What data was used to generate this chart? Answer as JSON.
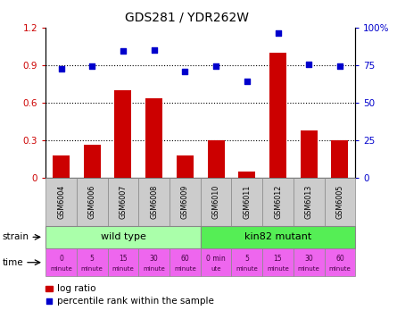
{
  "title": "GDS281 / YDR262W",
  "samples": [
    "GSM6004",
    "GSM6006",
    "GSM6007",
    "GSM6008",
    "GSM6009",
    "GSM6010",
    "GSM6011",
    "GSM6012",
    "GSM6013",
    "GSM6005"
  ],
  "log_ratio": [
    0.18,
    0.27,
    0.7,
    0.64,
    0.18,
    0.3,
    0.05,
    1.0,
    0.38,
    0.3
  ],
  "percentile": [
    72.5,
    74.5,
    84.5,
    85.5,
    71.0,
    74.5,
    64.5,
    96.5,
    76.0,
    74.5
  ],
  "bar_color": "#cc0000",
  "dot_color": "#0000cc",
  "ylim_left": [
    0,
    1.2
  ],
  "ylim_right": [
    0,
    100
  ],
  "yticks_left": [
    0,
    0.3,
    0.6,
    0.9,
    1.2
  ],
  "yticks_right": [
    0,
    25,
    50,
    75,
    100
  ],
  "ytick_labels_left": [
    "0",
    "0.3",
    "0.6",
    "0.9",
    "1.2"
  ],
  "ytick_labels_right": [
    "0",
    "25",
    "50",
    "75",
    "100%"
  ],
  "hlines": [
    0.3,
    0.6,
    0.9
  ],
  "strain_wildtype_label": "wild type",
  "strain_mutant_label": "kin82 mutant",
  "wildtype_color": "#aaffaa",
  "mutant_color": "#55ee55",
  "time_labels_top": [
    "0",
    "5",
    "15",
    "30",
    "60",
    "0 min",
    "5",
    "15",
    "30",
    "60"
  ],
  "time_labels_bot": [
    "minute",
    "minute",
    "minute",
    "minute",
    "minute",
    "ute",
    "minute",
    "minute",
    "minute",
    "minute"
  ],
  "time_colors": [
    "#ee66ee",
    "#ee66ee",
    "#ee66ee",
    "#ee66ee",
    "#ee66ee",
    "#ee66ee",
    "#ee66ee",
    "#ee66ee",
    "#ee66ee",
    "#ee66ee"
  ],
  "legend_bar_label": "log ratio",
  "legend_dot_label": "percentile rank within the sample",
  "bar_color_left": "#cc0000",
  "dot_color_right": "#0000cc",
  "sample_box_color": "#cccccc",
  "sample_box_edge": "#888888"
}
